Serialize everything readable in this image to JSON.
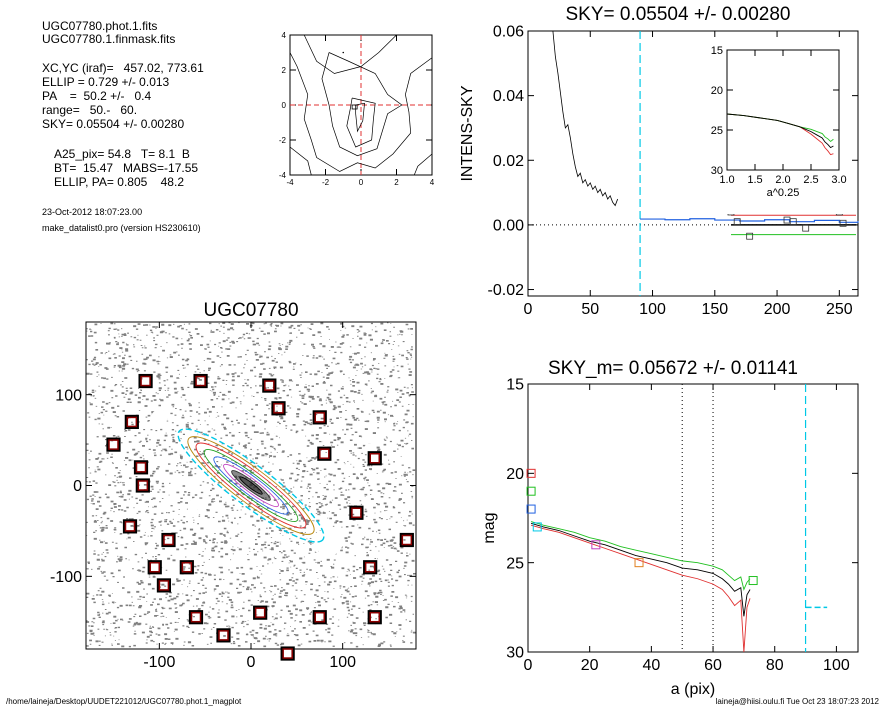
{
  "info": {
    "lines": [
      "UGC07780.phot.1.fits",
      "UGC07780.1.finmask.fits",
      "XC,YC (iraf)=   457.02, 773.61",
      "ELLIP = 0.729 +/- 0.013",
      "PA    =  50.2 +/-   0.4",
      "range=   50.-   60.",
      "SKY= 0.05504 +/- 0.00280",
      "A25_pix= 54.8   T= 8.1  B",
      "BT=  15.47   MABS=-17.55",
      "ELLIP, PA= 0.805    48.2",
      "23-Oct-2012 18:07:23.00",
      "make_datalist0.pro (version HS230610)"
    ]
  },
  "footer": {
    "left": "/home/laineja/Desktop/UUDET221012/UGC07780.phot.1_magplot",
    "right": "laineja@hiisi.oulu.fi  Tue Oct 23 18:07:23 2012"
  },
  "colors": {
    "cyan": "#00c8e6",
    "red": "#e03030",
    "green": "#20c020",
    "blue": "#2060e0",
    "magenta": "#c040c0",
    "orange": "#e08020",
    "darkred": "#8b0000"
  },
  "chart_data": [
    {
      "id": "contour",
      "type": "contour",
      "title": "",
      "xlim": [
        -4,
        4
      ],
      "ylim": [
        -4,
        4
      ],
      "xticks": [
        "-4",
        "-2",
        "0",
        "2",
        "4"
      ],
      "yticks": [
        "4",
        "2",
        "0",
        "-2",
        "-4"
      ]
    },
    {
      "id": "sky",
      "type": "line",
      "title": "SKY= 0.05504 +/- 0.00280",
      "xlabel": "",
      "ylabel": "INTENS-SKY",
      "xlim": [
        0,
        265
      ],
      "ylim": [
        -0.022,
        0.06
      ],
      "xticks": [
        "0",
        "50",
        "100",
        "150",
        "200",
        "250"
      ],
      "yticks": [
        "0.06",
        "0.04",
        "0.02",
        "0.00",
        "-0.02"
      ],
      "profile": [
        [
          20,
          0.06
        ],
        [
          22,
          0.052
        ],
        [
          24,
          0.047
        ],
        [
          26,
          0.041
        ],
        [
          28,
          0.035
        ],
        [
          30,
          0.03
        ],
        [
          32,
          0.031
        ],
        [
          34,
          0.027
        ],
        [
          36,
          0.022
        ],
        [
          38,
          0.018
        ],
        [
          40,
          0.015
        ],
        [
          42,
          0.016
        ],
        [
          44,
          0.013
        ],
        [
          46,
          0.014
        ],
        [
          48,
          0.012
        ],
        [
          50,
          0.013
        ],
        [
          52,
          0.011
        ],
        [
          54,
          0.012
        ],
        [
          56,
          0.01
        ],
        [
          58,
          0.011
        ],
        [
          60,
          0.009
        ],
        [
          62,
          0.01
        ],
        [
          64,
          0.008
        ],
        [
          66,
          0.009
        ],
        [
          68,
          0.007
        ],
        [
          70,
          0.006
        ],
        [
          72,
          0.008
        ]
      ],
      "sky_steps": [
        [
          90,
          0.0018
        ],
        [
          110,
          0.0016
        ],
        [
          130,
          0.0019
        ],
        [
          150,
          0.0015
        ],
        [
          170,
          0.0012
        ],
        [
          190,
          0.0016
        ],
        [
          210,
          0.001
        ],
        [
          230,
          0.0014
        ],
        [
          250,
          0.0008
        ],
        [
          265,
          0.0012
        ]
      ],
      "squares": [
        [
          163,
          0.004
        ],
        [
          168,
          0.001
        ],
        [
          178,
          -0.0035
        ],
        [
          208,
          0.0015
        ],
        [
          213,
          0.001
        ],
        [
          223,
          -0.001
        ],
        [
          250,
          0.004
        ],
        [
          253,
          0.0005
        ]
      ],
      "hlines": {
        "red": 0.003,
        "black": 0.0,
        "green": -0.003,
        "dotted": 0.0
      },
      "vline_cyan": 90
    },
    {
      "id": "inset",
      "type": "line",
      "title": "",
      "xlabel": "a^0.25",
      "xlim": [
        1.0,
        3.0
      ],
      "ylim": [
        15,
        30
      ],
      "xticks": [
        "1.0",
        "1.5",
        "2.0",
        "2.5",
        "3.0"
      ],
      "yticks": [
        "15",
        "20",
        "25",
        "30"
      ]
    },
    {
      "id": "image",
      "type": "image",
      "title": "UGC07780",
      "xlim": [
        -180,
        180
      ],
      "ylim": [
        -180,
        180
      ],
      "xticks": [
        "-100",
        "0",
        "100"
      ],
      "yticks": [
        "100",
        "0",
        "-100"
      ],
      "boxes": [
        [
          -115,
          115
        ],
        [
          -55,
          115
        ],
        [
          20,
          110
        ],
        [
          30,
          85
        ],
        [
          -130,
          70
        ],
        [
          75,
          75
        ],
        [
          -150,
          45
        ],
        [
          80,
          35
        ],
        [
          135,
          30
        ],
        [
          -120,
          20
        ],
        [
          -118,
          0
        ],
        [
          115,
          -30
        ],
        [
          -132,
          -45
        ],
        [
          -90,
          -60
        ],
        [
          170,
          -60
        ],
        [
          -105,
          -90
        ],
        [
          -70,
          -90
        ],
        [
          130,
          -90
        ],
        [
          -95,
          -110
        ],
        [
          -60,
          -145
        ],
        [
          10,
          -140
        ],
        [
          75,
          -145
        ],
        [
          135,
          -145
        ],
        [
          -30,
          -165
        ],
        [
          40,
          -185
        ]
      ]
    },
    {
      "id": "mag",
      "type": "line",
      "title": "SKY_m=  0.05672 +/- 0.01141",
      "xlabel": "a (pix)",
      "ylabel": "mag",
      "xlim": [
        0,
        107
      ],
      "ylim": [
        15,
        30
      ],
      "xticks": [
        "0",
        "20",
        "40",
        "60",
        "80",
        "100"
      ],
      "yticks": [
        "15",
        "20",
        "25",
        "30"
      ],
      "series": [
        {
          "name": "",
          "color": "black",
          "values": [
            [
              1,
              22.8
            ],
            [
              5,
              23.0
            ],
            [
              10,
              23.2
            ],
            [
              15,
              23.5
            ],
            [
              20,
              23.8
            ],
            [
              25,
              24.0
            ],
            [
              30,
              24.3
            ],
            [
              35,
              24.6
            ],
            [
              40,
              24.8
            ],
            [
              45,
              25.0
            ],
            [
              50,
              25.3
            ],
            [
              55,
              25.4
            ],
            [
              60,
              25.6
            ],
            [
              63,
              25.9
            ],
            [
              65,
              26.2
            ],
            [
              67,
              26.6
            ],
            [
              69,
              26.4
            ],
            [
              70,
              28.0
            ],
            [
              71,
              26.8
            ],
            [
              72,
              26.5
            ]
          ]
        },
        {
          "name": "",
          "color": "red",
          "values": [
            [
              1,
              22.9
            ],
            [
              5,
              23.1
            ],
            [
              10,
              23.3
            ],
            [
              15,
              23.6
            ],
            [
              20,
              23.9
            ],
            [
              25,
              24.2
            ],
            [
              30,
              24.5
            ],
            [
              35,
              24.8
            ],
            [
              40,
              25.1
            ],
            [
              45,
              25.4
            ],
            [
              50,
              25.7
            ],
            [
              55,
              25.9
            ],
            [
              60,
              26.2
            ],
            [
              63,
              26.5
            ],
            [
              65,
              26.9
            ],
            [
              67,
              27.4
            ],
            [
              69,
              27.1
            ],
            [
              70,
              30.0
            ],
            [
              71,
              27.5
            ],
            [
              72,
              27.0
            ]
          ]
        },
        {
          "name": "",
          "color": "green",
          "values": [
            [
              1,
              22.7
            ],
            [
              5,
              22.9
            ],
            [
              10,
              23.1
            ],
            [
              15,
              23.3
            ],
            [
              20,
              23.6
            ],
            [
              25,
              23.8
            ],
            [
              30,
              24.1
            ],
            [
              35,
              24.3
            ],
            [
              40,
              24.5
            ],
            [
              45,
              24.7
            ],
            [
              50,
              24.9
            ],
            [
              55,
              25.0
            ],
            [
              60,
              25.2
            ],
            [
              63,
              25.4
            ],
            [
              65,
              25.7
            ],
            [
              67,
              26.0
            ],
            [
              69,
              25.8
            ],
            [
              70,
              26.5
            ],
            [
              71,
              26.1
            ],
            [
              72,
              25.9
            ]
          ]
        }
      ],
      "squares": [
        [
          1,
          20.0,
          "red"
        ],
        [
          1,
          21.0,
          "green"
        ],
        [
          1,
          22.0,
          "blue"
        ],
        [
          3,
          23.0,
          "cyan"
        ],
        [
          22,
          24.0,
          "magenta"
        ],
        [
          36,
          25.0,
          "orange"
        ],
        [
          73,
          26.0,
          "green"
        ]
      ],
      "vlines_dotted": [
        50,
        60
      ],
      "vline_cyan": 90,
      "sky_level": {
        "x": [
          90,
          97
        ],
        "y": 27.5
      }
    }
  ]
}
